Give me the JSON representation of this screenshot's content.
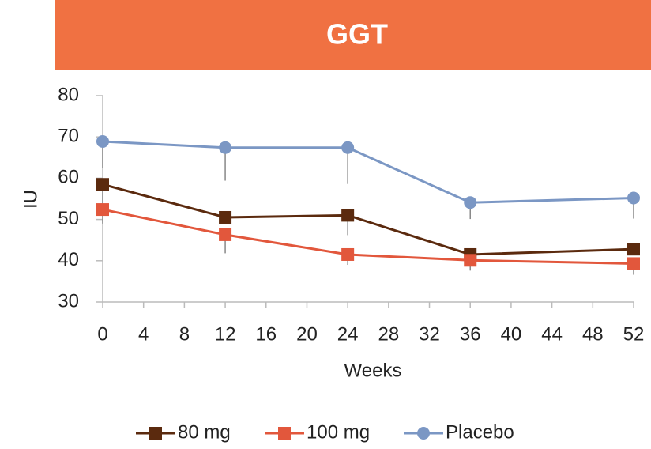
{
  "chart_data": {
    "type": "line",
    "title": "GGT",
    "x_label": "Weeks",
    "y_label": "IU",
    "xlim": [
      0,
      52
    ],
    "xticks": [
      0,
      4,
      8,
      12,
      16,
      20,
      24,
      28,
      32,
      36,
      40,
      44,
      48,
      52
    ],
    "ylim": [
      30,
      80
    ],
    "yticks": [
      30,
      40,
      50,
      60,
      70,
      80
    ],
    "grid": false,
    "legend": "bottom",
    "x": [
      0,
      12,
      24,
      36,
      52
    ],
    "series": [
      {
        "name": "80 mg",
        "color": "#5b2a0e",
        "marker": "square",
        "values": [
          58.5,
          50.5,
          51,
          41.5,
          42.8
        ],
        "errors": [
          6,
          null,
          4.8,
          null,
          null
        ]
      },
      {
        "name": "100 mg",
        "color": "#e2573c",
        "marker": "square",
        "values": [
          52.4,
          46.3,
          41.5,
          40.1,
          39.3
        ],
        "errors": [
          3.4,
          4.5,
          2.5,
          2.5,
          2.7
        ]
      },
      {
        "name": "Placebo",
        "color": "#7b97c4",
        "marker": "circle",
        "values": [
          68.9,
          67.4,
          67.4,
          54.1,
          55.2
        ],
        "errors": [
          6.5,
          8,
          8.8,
          4,
          5
        ]
      }
    ]
  }
}
